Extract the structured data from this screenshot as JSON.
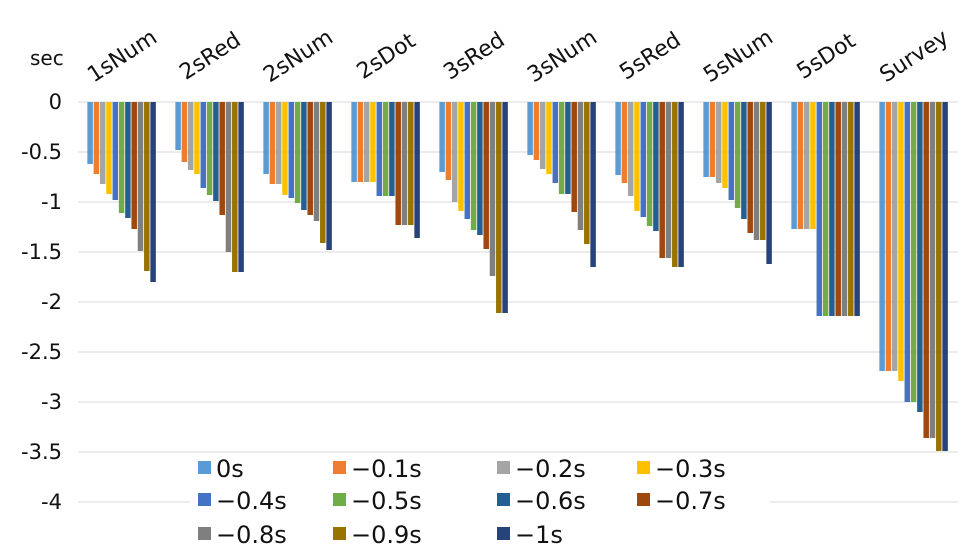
{
  "chart_data": {
    "type": "bar",
    "ylabel": "sec",
    "ylim": [
      -4,
      0
    ],
    "yticks": [
      0,
      -0.5,
      -1,
      -1.5,
      -2,
      -2.5,
      -3,
      -3.5,
      -4
    ],
    "ytick_labels": [
      "0",
      "-0.5",
      "-1",
      "-1.5",
      "-2",
      "-2.5",
      "-3",
      "-3.5",
      "-4"
    ],
    "grid": true,
    "legend_position": "bottom-center",
    "categories": [
      "1sNum",
      "2sRed",
      "2sNum",
      "2sDot",
      "3sRed",
      "3sNum",
      "5sRed",
      "5sNum",
      "5sDot",
      "Survey"
    ],
    "series": [
      {
        "name": "0s",
        "color": "#5b9bd5",
        "values": [
          -0.62,
          -0.48,
          -0.72,
          -0.8,
          -0.7,
          -0.53,
          -0.73,
          -0.75,
          -1.27,
          -2.69
        ]
      },
      {
        "name": "-0.1s",
        "color": "#ed7d31",
        "values": [
          -0.72,
          -0.6,
          -0.82,
          -0.8,
          -0.78,
          -0.58,
          -0.81,
          -0.75,
          -1.27,
          -2.69
        ]
      },
      {
        "name": "-0.2s",
        "color": "#a5a5a5",
        "values": [
          -0.82,
          -0.68,
          -0.82,
          -0.8,
          -1.0,
          -0.67,
          -0.94,
          -0.81,
          -1.27,
          -2.69
        ]
      },
      {
        "name": "-0.3s",
        "color": "#ffc000",
        "values": [
          -0.92,
          -0.72,
          -0.93,
          -0.8,
          -1.09,
          -0.72,
          -1.09,
          -0.86,
          -1.27,
          -2.79
        ]
      },
      {
        "name": "-0.4s",
        "color": "#4472c4",
        "values": [
          -0.98,
          -0.86,
          -0.96,
          -0.94,
          -1.17,
          -0.81,
          -1.15,
          -0.98,
          -2.14,
          -3.0
        ]
      },
      {
        "name": "-0.5s",
        "color": "#70ad47",
        "values": [
          -1.11,
          -0.93,
          -1.01,
          -0.94,
          -1.28,
          -0.92,
          -1.24,
          -1.06,
          -2.14,
          -3.0
        ]
      },
      {
        "name": "-0.6s",
        "color": "#255e91",
        "values": [
          -1.16,
          -0.99,
          -1.08,
          -0.94,
          -1.33,
          -0.92,
          -1.29,
          -1.17,
          -2.14,
          -3.1
        ]
      },
      {
        "name": "-0.7s",
        "color": "#9e480e",
        "values": [
          -1.27,
          -1.13,
          -1.13,
          -1.23,
          -1.47,
          -1.1,
          -1.56,
          -1.31,
          -2.14,
          -3.36
        ]
      },
      {
        "name": "-0.8s",
        "color": "#7f7f7f",
        "values": [
          -1.49,
          -1.5,
          -1.19,
          -1.23,
          -1.74,
          -1.28,
          -1.56,
          -1.38,
          -2.14,
          -3.36
        ]
      },
      {
        "name": "-0.9s",
        "color": "#997300",
        "values": [
          -1.69,
          -1.7,
          -1.41,
          -1.23,
          -2.11,
          -1.42,
          -1.65,
          -1.38,
          -2.14,
          -3.49
        ]
      },
      {
        "name": "-1s",
        "color": "#264478",
        "values": [
          -1.8,
          -1.7,
          -1.48,
          -1.36,
          -2.11,
          -1.65,
          -1.65,
          -1.62,
          -2.14,
          -3.49
        ]
      }
    ]
  },
  "legend_labels": [
    "0s",
    "−0.1s",
    "−0.2s",
    "−0.3s",
    "−0.4s",
    "−0.5s",
    "−0.6s",
    "−0.7s",
    "−0.8s",
    "−0.9s",
    "−1s"
  ],
  "colors": {
    "gridline": "#d9d9d9",
    "background": "#ffffff"
  }
}
